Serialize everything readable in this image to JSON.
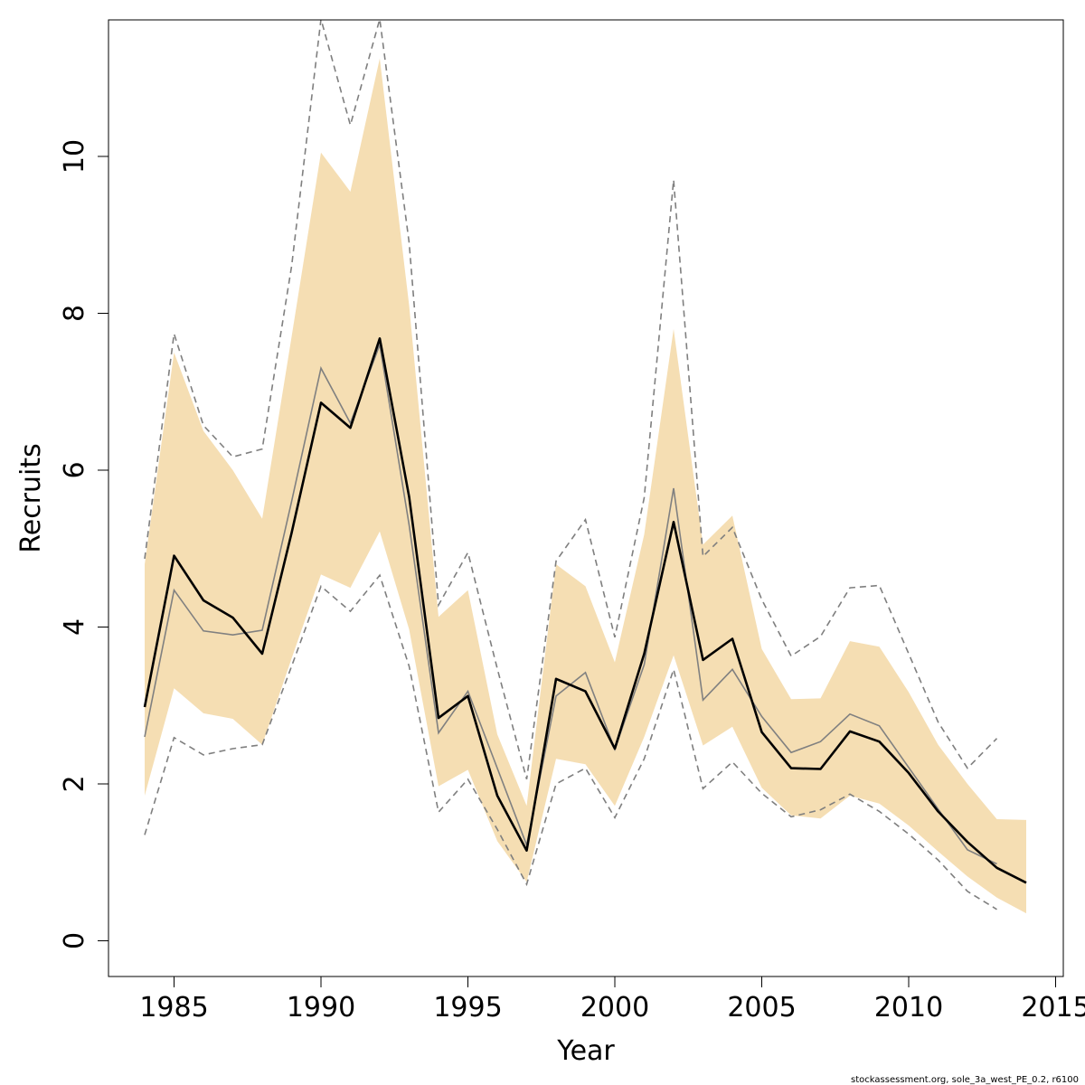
{
  "chart_data": {
    "type": "line",
    "xlabel": "Year",
    "ylabel": "Recruits",
    "xlim": [
      1983.1,
      1975.5
    ],
    "ylim": [
      -0.45,
      11.75
    ],
    "xticks": [
      1985,
      1990,
      1995,
      2000,
      2005,
      2010,
      2015
    ],
    "yticks": [
      0,
      2,
      4,
      6,
      8,
      10
    ],
    "grid": false,
    "legend": "none",
    "colors": {
      "band": "#f5deb3",
      "estimate": "#000000",
      "comparison": "#808080",
      "bounds": "#7f7f7f"
    },
    "band": {
      "x": [
        1984,
        1985,
        1986,
        1987,
        1988,
        1989,
        1990,
        1991,
        1992,
        1993,
        1994,
        1995,
        1996,
        1997,
        1998,
        1999,
        2000,
        2001,
        2002,
        2003,
        2004,
        2005,
        2006,
        2007,
        2008,
        2009,
        2010,
        2011,
        2012,
        2013,
        2014
      ],
      "lower": [
        1.85,
        3.22,
        2.9,
        2.83,
        2.5,
        3.6,
        4.67,
        4.5,
        5.22,
        3.97,
        1.97,
        2.18,
        1.27,
        0.75,
        2.32,
        2.25,
        1.72,
        2.6,
        3.64,
        2.49,
        2.73,
        1.95,
        1.6,
        1.56,
        1.85,
        1.75,
        1.47,
        1.14,
        0.82,
        0.55,
        0.35
      ],
      "upper": [
        4.8,
        7.5,
        6.5,
        6.0,
        5.38,
        7.7,
        10.05,
        9.55,
        11.25,
        8.1,
        4.13,
        4.47,
        2.63,
        1.72,
        4.8,
        4.52,
        3.55,
        5.18,
        7.8,
        5.05,
        5.42,
        3.72,
        3.08,
        3.09,
        3.82,
        3.75,
        3.17,
        2.5,
        2.0,
        1.55,
        1.54
      ]
    },
    "series": [
      {
        "x": [
          1984,
          1985,
          1986,
          1987,
          1988,
          1989,
          1990,
          1991,
          1992,
          1993,
          1994,
          1995,
          1996,
          1997,
          1998,
          1999,
          2000,
          2001,
          2002,
          2003,
          2004,
          2005,
          2006,
          2007,
          2008,
          2009,
          2010,
          2011,
          2012,
          2013,
          2014
        ],
        "values": [
          2.98,
          4.91,
          4.34,
          4.12,
          3.66,
          5.2,
          6.86,
          6.54,
          7.68,
          5.66,
          2.84,
          3.12,
          1.85,
          1.15,
          3.34,
          3.18,
          2.45,
          3.66,
          5.34,
          3.58,
          3.85,
          2.66,
          2.2,
          2.19,
          2.67,
          2.54,
          2.14,
          1.65,
          1.26,
          0.93,
          0.74
        ]
      },
      {
        "x": [
          1984,
          1985,
          1986,
          1987,
          1988,
          1989,
          1990,
          1991,
          1992,
          1993,
          1994,
          1995,
          1996,
          1997,
          1998,
          1999,
          2000,
          2001,
          2002,
          2003,
          2004,
          2005,
          2006,
          2007,
          2008,
          2009,
          2010,
          2011,
          2012,
          2013
        ],
        "values": [
          2.6,
          4.47,
          3.95,
          3.9,
          3.96,
          5.6,
          7.3,
          6.6,
          7.6,
          5.3,
          2.65,
          3.18,
          2.2,
          1.22,
          3.12,
          3.42,
          2.44,
          3.52,
          5.77,
          3.07,
          3.46,
          2.86,
          2.4,
          2.54,
          2.89,
          2.74,
          2.21,
          1.68,
          1.16,
          0.98
        ]
      },
      {
        "x": [
          1984,
          1985,
          1986,
          1987,
          1988,
          1989,
          1990,
          1991,
          1992,
          1993,
          1994,
          1995,
          1996,
          1997,
          1998,
          1999,
          2000,
          2001,
          2002,
          2003,
          2004,
          2005,
          2006,
          2007,
          2008,
          2009,
          2010,
          2011,
          2012,
          2013
        ],
        "values": [
          1.35,
          2.59,
          2.37,
          2.45,
          2.5,
          3.5,
          4.52,
          4.2,
          4.66,
          3.5,
          1.64,
          2.06,
          1.42,
          0.72,
          2.0,
          2.2,
          1.57,
          2.32,
          3.46,
          1.94,
          2.28,
          1.88,
          1.58,
          1.67,
          1.87,
          1.65,
          1.36,
          1.03,
          0.63,
          0.4
        ]
      },
      {
        "x": [
          1984,
          1985,
          1986,
          1987,
          1988,
          1989,
          1990,
          1991,
          1992,
          1993,
          1994,
          1995,
          1996,
          1997,
          1998,
          1999,
          2000,
          2001,
          2002,
          2003,
          2004,
          2005,
          2006,
          2007,
          2008,
          2009,
          2010,
          2011,
          2012,
          2013
        ],
        "values": [
          4.87,
          7.74,
          6.57,
          6.17,
          6.27,
          8.6,
          11.75,
          10.4,
          11.75,
          8.9,
          4.28,
          4.95,
          3.47,
          2.06,
          4.84,
          5.37,
          3.87,
          5.65,
          9.7,
          4.9,
          5.27,
          4.35,
          3.63,
          3.88,
          4.5,
          4.53,
          3.66,
          2.79,
          2.2,
          2.58
        ]
      }
    ]
  },
  "credit_text": "stockassessment.org, sole_3a_west_PE_0.2, r6100"
}
